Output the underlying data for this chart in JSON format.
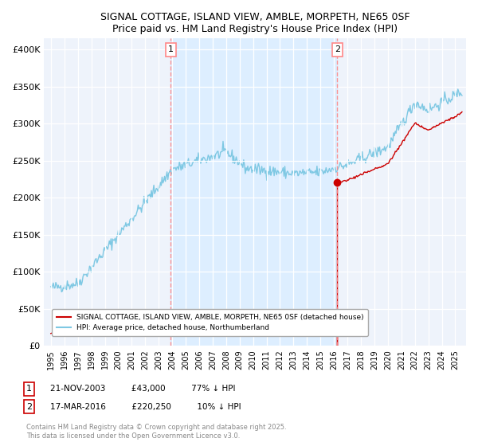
{
  "title": "SIGNAL COTTAGE, ISLAND VIEW, AMBLE, MORPETH, NE65 0SF",
  "subtitle": "Price paid vs. HM Land Registry's House Price Index (HPI)",
  "ylabel_ticks": [
    "£0",
    "£50K",
    "£100K",
    "£150K",
    "£200K",
    "£250K",
    "£300K",
    "£350K",
    "£400K"
  ],
  "ytick_values": [
    0,
    50000,
    100000,
    150000,
    200000,
    250000,
    300000,
    350000,
    400000
  ],
  "ylim": [
    0,
    415000
  ],
  "xlim_start": 1994.5,
  "xlim_end": 2025.8,
  "transaction1": {
    "date": "21-NOV-2003",
    "price": 43000,
    "label": "1",
    "year": 2003.9
  },
  "transaction2": {
    "date": "17-MAR-2016",
    "price": 220250,
    "label": "2",
    "year": 2016.25
  },
  "legend_line1": "SIGNAL COTTAGE, ISLAND VIEW, AMBLE, MORPETH, NE65 0SF (detached house)",
  "legend_line2": "HPI: Average price, detached house, Northumberland",
  "footer": "Contains HM Land Registry data © Crown copyright and database right 2025.\nThis data is licensed under the Open Government Licence v3.0.",
  "hpi_color": "#7ec8e3",
  "price_color": "#cc0000",
  "vline_color": "#ff8888",
  "shade_color": "#ddeeff",
  "background_color": "#eef3fb"
}
